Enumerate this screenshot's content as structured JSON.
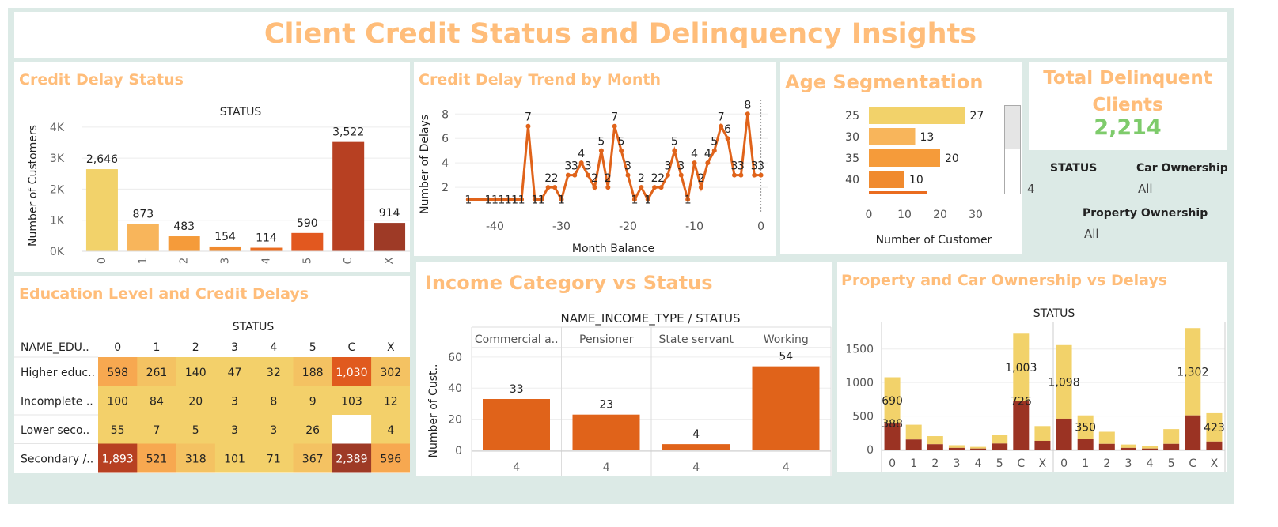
{
  "dashboard": {
    "title": "Client Credit Status and Delinquency Insights"
  },
  "kpi": {
    "title_line1": "Total Delinquent",
    "title_line2": "Clients",
    "value": "2,214",
    "value_color": "#7ecb6b"
  },
  "filters": {
    "status_label": "STATUS",
    "status_value": "4",
    "car_label": "Car Ownership",
    "car_value": "All",
    "property_label": "Property Ownership",
    "property_value": "All"
  },
  "colors": {
    "title": "#ffbd7a",
    "s0": "#f2d26a",
    "s1": "#f8b55b",
    "s2": "#f59b3a",
    "s3": "#f08a2e",
    "s4": "#ea6c1f",
    "s5": "#e2581f",
    "sC": "#b74022",
    "sX": "#9e3a26",
    "line": "#e0631a",
    "dark": "#9b3323",
    "yellow": "#f2d26a"
  },
  "chart_data": [
    {
      "id": "credit_delay_status",
      "panel_title": "Credit Delay Status",
      "type": "bar",
      "header": "STATUS",
      "ylabel": "Number of Customers",
      "categories": [
        "0",
        "1",
        "2",
        "3",
        "4",
        "5",
        "C",
        "X"
      ],
      "values": [
        2646,
        873,
        483,
        154,
        114,
        590,
        3522,
        914
      ],
      "value_labels": [
        "2,646",
        "873",
        "483",
        "154",
        "114",
        "590",
        "3,522",
        "914"
      ],
      "ylim": [
        0,
        4200
      ],
      "yticks": [
        0,
        1000,
        2000,
        3000,
        4000
      ],
      "ytick_labels": [
        "0K",
        "1K",
        "2K",
        "3K",
        "4K"
      ]
    },
    {
      "id": "credit_delay_trend",
      "panel_title": "Credit Delay Trend by Month",
      "type": "line",
      "xlabel": "Month Balance",
      "ylabel": "Number of Delays",
      "x": [
        -44,
        -41,
        -40,
        -39,
        -38,
        -37,
        -36,
        -35,
        -34,
        -33,
        -32,
        -31,
        -30,
        -29,
        -28,
        -27,
        -26,
        -25,
        -24,
        -23,
        -22,
        -21,
        -20,
        -19,
        -18,
        -17,
        -16,
        -15,
        -14,
        -13,
        -12,
        -11,
        -10,
        -9,
        -8,
        -7,
        -6,
        -5,
        -4,
        -3,
        -2,
        -1,
        0
      ],
      "y": [
        1,
        1,
        1,
        1,
        1,
        1,
        1,
        7,
        1,
        1,
        2,
        2,
        1,
        3,
        3,
        4,
        3,
        2,
        5,
        2,
        7,
        5,
        3,
        1,
        2,
        1,
        2,
        2,
        3,
        5,
        3,
        1,
        4,
        2,
        4,
        5,
        7,
        6,
        3,
        3,
        8,
        3,
        3
      ],
      "xlim": [
        -46,
        1
      ],
      "ylim": [
        0,
        8.6
      ],
      "xticks": [
        -40,
        -30,
        -20,
        -10,
        0
      ],
      "yticks": [
        2,
        4,
        6,
        8
      ]
    },
    {
      "id": "age_segmentation",
      "panel_title": "Age Segmentation",
      "type": "bar",
      "orientation": "horizontal",
      "xlabel": "Number of Customer",
      "categories": [
        "25",
        "30",
        "35",
        "40"
      ],
      "values": [
        27,
        13,
        20,
        10
      ],
      "xlim": [
        0,
        32
      ],
      "xticks": [
        0,
        10,
        20,
        30
      ]
    },
    {
      "id": "education_heatmap",
      "panel_title": "Education Level and Credit Delays",
      "type": "heatmap",
      "header": "STATUS",
      "row_header": "NAME_EDU..",
      "columns": [
        "0",
        "1",
        "2",
        "3",
        "4",
        "5",
        "C",
        "X"
      ],
      "rows": [
        "Higher educ..",
        "Incomplete ..",
        "Lower seco..",
        "Secondary /.."
      ],
      "values": [
        [
          598,
          261,
          140,
          47,
          32,
          188,
          1030,
          302
        ],
        [
          100,
          84,
          20,
          3,
          8,
          9,
          103,
          12
        ],
        [
          55,
          7,
          5,
          3,
          3,
          26,
          null,
          4
        ],
        [
          1893,
          521,
          318,
          101,
          71,
          367,
          2389,
          596
        ]
      ],
      "labels": [
        [
          "598",
          "261",
          "140",
          "47",
          "32",
          "188",
          "1,030",
          "302"
        ],
        [
          "100",
          "84",
          "20",
          "3",
          "8",
          "9",
          "103",
          "12"
        ],
        [
          "55",
          "7",
          "5",
          "3",
          "3",
          "26",
          "",
          "4"
        ],
        [
          "1,893",
          "521",
          "318",
          "101",
          "71",
          "367",
          "2,389",
          "596"
        ]
      ]
    },
    {
      "id": "income_vs_status",
      "panel_title": "Income Category vs Status",
      "type": "bar",
      "header": "NAME_INCOME_TYPE  /  STATUS",
      "ylabel": "Number of Cust..",
      "categories": [
        "Commercial a..",
        "Pensioner",
        "State servant",
        "Working"
      ],
      "values": [
        33,
        23,
        4,
        54
      ],
      "status": "4",
      "ylim": [
        0,
        66
      ],
      "yticks": [
        0,
        20,
        40,
        60
      ]
    },
    {
      "id": "ownership_vs_delays",
      "panel_title": "Property and Car Ownership vs Delays",
      "type": "bar",
      "stacked": true,
      "header": "STATUS",
      "categories": [
        "0",
        "1",
        "2",
        "3",
        "4",
        "5",
        "C",
        "X"
      ],
      "ylim": [
        0,
        1850
      ],
      "yticks": [
        0,
        500,
        1000,
        1500
      ],
      "panels": [
        {
          "series": [
            {
              "name": "",
              "values": [
                388,
                150,
                80,
                25,
                15,
                90,
                726,
                130
              ]
            },
            {
              "name": "",
              "values": [
                690,
                220,
                120,
                40,
                25,
                130,
                1003,
                220
              ]
            }
          ],
          "labels": {
            "0": [
              "388",
              "690"
            ],
            "C": [
              "726",
              "1,003"
            ]
          }
        },
        {
          "series": [
            {
              "name": "",
              "values": [
                460,
                160,
                85,
                25,
                15,
                85,
                510,
                120
              ]
            },
            {
              "name": "",
              "values": [
                1098,
                350,
                180,
                50,
                40,
                220,
                1302,
                423
              ]
            }
          ],
          "labels": {
            "0": [
              "1,098"
            ],
            "1": [
              "350"
            ],
            "C": [
              "1,302"
            ],
            "X": [
              "423"
            ]
          }
        }
      ]
    }
  ]
}
